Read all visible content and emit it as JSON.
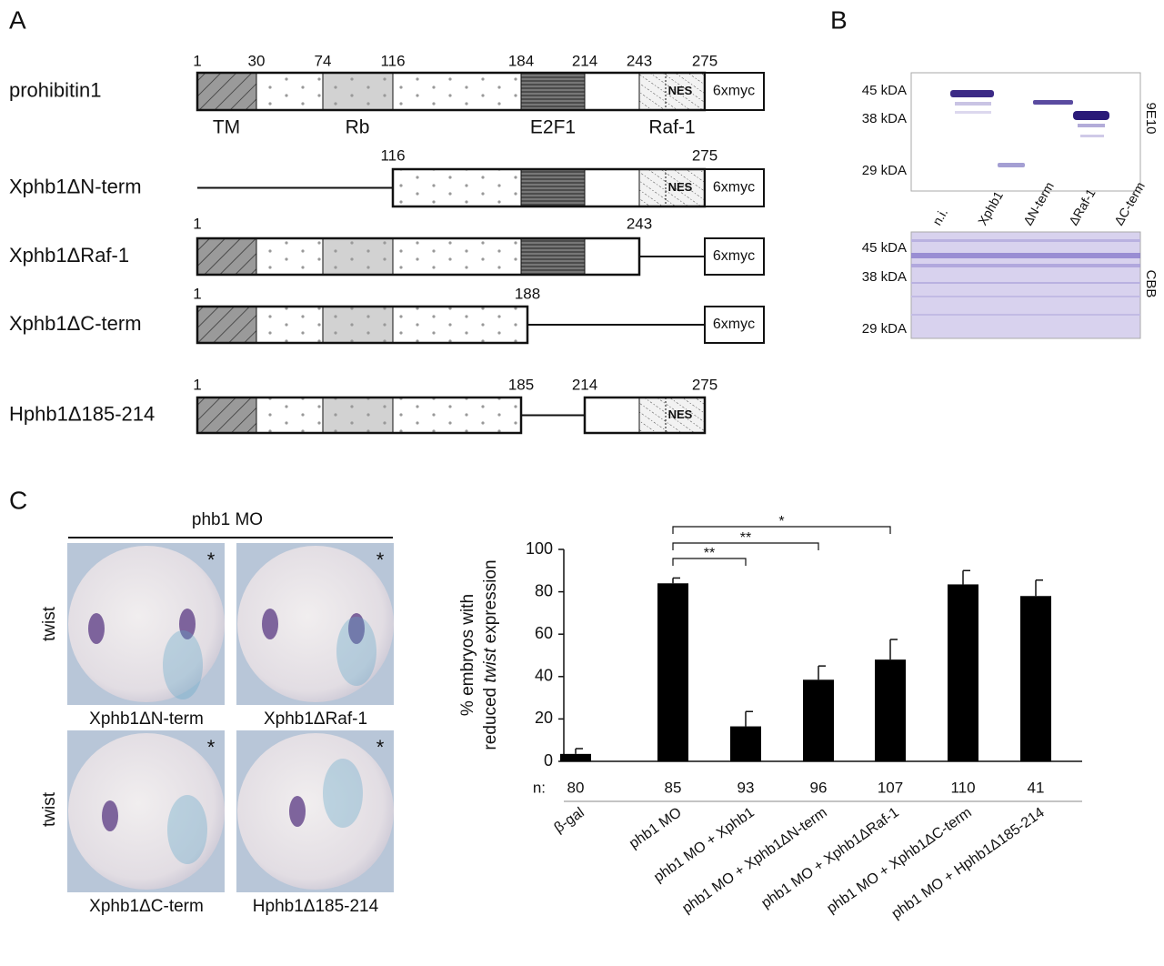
{
  "panel_a": {
    "label": "A",
    "constructs": [
      {
        "name": "prohibitin1",
        "positions": [
          1,
          30,
          74,
          116,
          184,
          214,
          243,
          275
        ],
        "domains": [
          "TM",
          "Rb",
          "E2F1",
          "Raf-1"
        ],
        "nes": "NES",
        "tag": "6xmyc"
      },
      {
        "name": "Xphb1ΔN-term",
        "positions": [
          116,
          275
        ],
        "nes": "NES",
        "tag": "6xmyc"
      },
      {
        "name": "Xphb1ΔRaf-1",
        "positions": [
          1,
          243
        ],
        "tag": "6xmyc"
      },
      {
        "name": "Xphb1ΔC-term",
        "positions": [
          1,
          188
        ],
        "tag": "6xmyc"
      },
      {
        "name": "Hphb1Δ185-214",
        "positions": [
          1,
          185,
          214,
          275
        ],
        "nes": "NES"
      }
    ]
  },
  "panel_b": {
    "label": "B",
    "blot_markers": [
      "45 kDA",
      "38 kDA",
      "29 kDA"
    ],
    "blot_antibody": "9E10",
    "lanes": [
      "n.i.",
      "Xphb1",
      "ΔN-term",
      "ΔRaf-1",
      "ΔC-term"
    ],
    "gel_markers": [
      "45 kDA",
      "38 kDA",
      "29 kDA"
    ],
    "gel_stain": "CBB"
  },
  "panel_c": {
    "label": "C",
    "group_title": "phb1 MO",
    "row_labels": [
      "twist",
      "twist"
    ],
    "images": [
      {
        "caption": "Xphb1ΔN-term",
        "mark": "*"
      },
      {
        "caption": "Xphb1ΔRaf-1",
        "mark": "*"
      },
      {
        "caption": "Xphb1ΔC-term",
        "mark": "*"
      },
      {
        "caption": "Hphb1Δ185-214",
        "mark": "*"
      }
    ]
  },
  "chart_data": {
    "type": "bar",
    "ylabel": {
      "line1": "% embryos with",
      "line2_before": "reduced ",
      "line2_italic": "twist",
      "line2_after": " expression"
    },
    "categories": [
      "β-gal",
      "phb1 MO",
      "phb1 MO + Xphb1",
      "phb1 MO + Xphb1ΔN-term",
      "phb1 MO + Xphb1ΔRaf-1",
      "phb1 MO + Xphb1ΔC-term",
      "phb1 MO + Hphb1Δ185-214"
    ],
    "values": [
      3.5,
      84,
      16.5,
      38.5,
      48,
      83.5,
      78
    ],
    "errors": [
      2.5,
      2.5,
      7,
      6.5,
      9.5,
      6.5,
      7.5
    ],
    "color": "#000000",
    "n_label": "n:",
    "n": [
      80,
      85,
      93,
      96,
      107,
      110,
      41
    ],
    "significance": [
      "**",
      "**",
      "*"
    ],
    "ylim": [
      0,
      100
    ],
    "yticks": [
      0,
      20,
      40,
      60,
      80,
      100
    ]
  }
}
